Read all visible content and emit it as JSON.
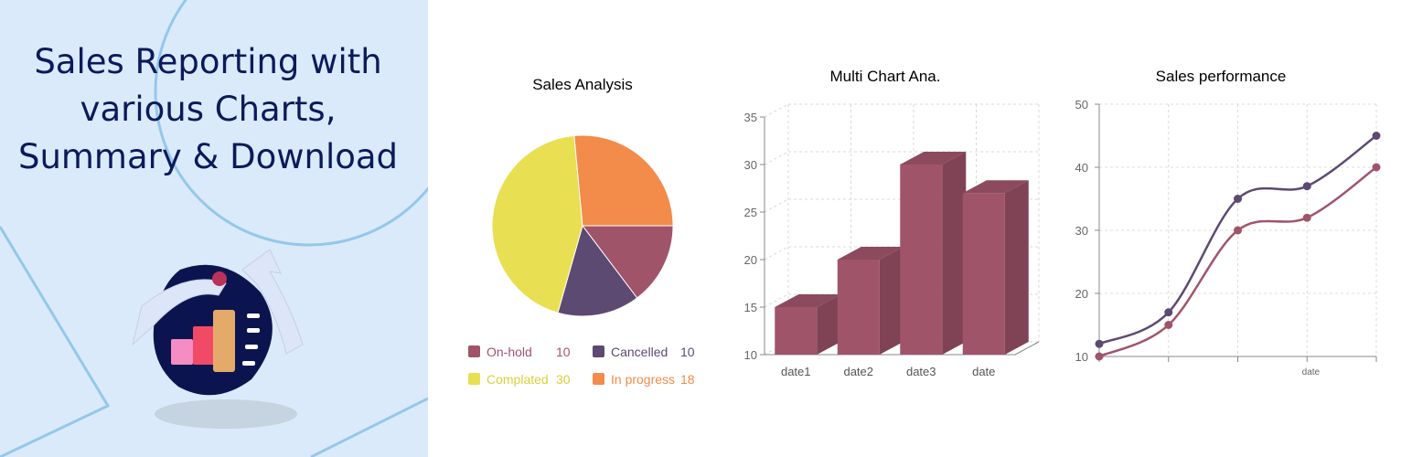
{
  "hero": {
    "title_lines": [
      "Sales Reporting with",
      "various Charts,",
      "Summary & Download"
    ]
  },
  "colors": {
    "panel_bg": "#dbeafa",
    "title_text": "#0c1a5b",
    "on_hold": "#a0546a",
    "cancelled": "#5c4a72",
    "completed": "#e8df52",
    "in_progress": "#f38b4a"
  },
  "illustration": {
    "icon": "sales-report-icon"
  },
  "chart_data": [
    {
      "type": "pie",
      "title": "Sales Analysis",
      "slices": [
        {
          "name": "On-hold",
          "value": 10,
          "color": "#a0546a"
        },
        {
          "name": "Cancelled",
          "value": 10,
          "color": "#5c4a72"
        },
        {
          "name": "Complated",
          "value": 30,
          "color": "#e8df52"
        },
        {
          "name": "In progress",
          "value": 18,
          "color": "#f38b4a"
        }
      ],
      "legend_position": "bottom"
    },
    {
      "type": "bar",
      "title": "Multi Chart Ana.",
      "categories": [
        "date1",
        "date2",
        "date3",
        "date"
      ],
      "values": [
        15,
        20,
        30,
        27
      ],
      "ylim": [
        10,
        35
      ],
      "yticks": [
        10,
        15,
        20,
        25,
        30,
        35
      ],
      "color": "#a0546a",
      "grid": true,
      "style": "3d"
    },
    {
      "type": "line",
      "title": "Sales performance",
      "xlabel": "date",
      "ylim": [
        10,
        50
      ],
      "yticks": [
        10,
        20,
        30,
        40,
        50
      ],
      "x": [
        1,
        2,
        3,
        4,
        5
      ],
      "series": [
        {
          "values": [
            12,
            17,
            35,
            37,
            45
          ],
          "color": "#5c4a72"
        },
        {
          "values": [
            10,
            15,
            30,
            32,
            40
          ],
          "color": "#a0546a"
        }
      ],
      "grid": true
    }
  ]
}
